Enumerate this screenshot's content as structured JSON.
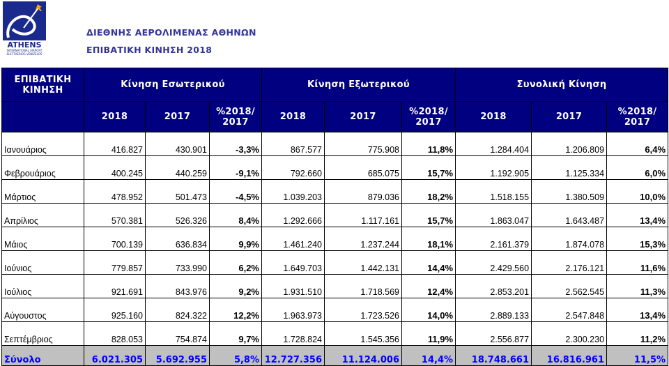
{
  "logo": {
    "name": "ATHENS",
    "sub1": "INTERNATIONAL AIRPORT",
    "sub2": "ELEFTHERIOS VENIZELOS"
  },
  "title1": "ΔΙΕΘΝΗΣ ΑΕΡΟΛΙΜΕΝΑΣ ΑΘΗΝΩΝ",
  "title2": "ΕΠΙΒΑΤΙΚΗ ΚΙΝΗΣΗ 2018",
  "header": {
    "corner": "ΕΠΙΒΑΤΙΚΗ ΚΙΝΗΣΗ",
    "groups": [
      "Κίνηση Εσωτερικού",
      "Κίνηση Εξωτερικού",
      "Συνολική Κίνηση"
    ],
    "sub": [
      "2018",
      "2017",
      "%2018/ 2017"
    ]
  },
  "rows": [
    [
      "Ιανουάριος",
      "416.827",
      "430.901",
      "-3,3%",
      "867.577",
      "775.908",
      "11,8%",
      "1.284.404",
      "1.206.809",
      "6,4%"
    ],
    [
      "Φεβρουάριος",
      "400.245",
      "440.259",
      "-9,1%",
      "792.660",
      "685.075",
      "15,7%",
      "1.192.905",
      "1.125.334",
      "6,0%"
    ],
    [
      "Μάρτιος",
      "478.952",
      "501.473",
      "-4,5%",
      "1.039.203",
      "879.036",
      "18,2%",
      "1.518.155",
      "1.380.509",
      "10,0%"
    ],
    [
      "Απρίλιος",
      "570.381",
      "526.326",
      "8,4%",
      "1.292.666",
      "1.117.161",
      "15,7%",
      "1.863.047",
      "1.643.487",
      "13,4%"
    ],
    [
      "Μάιος",
      "700.139",
      "636.834",
      "9,9%",
      "1.461.240",
      "1.237.244",
      "18,1%",
      "2.161.379",
      "1.874.078",
      "15,3%"
    ],
    [
      "Ιούνιος",
      "779.857",
      "733.990",
      "6,2%",
      "1.649.703",
      "1.442.131",
      "14,4%",
      "2.429.560",
      "2.176.121",
      "11,6%"
    ],
    [
      "Ιούλιος",
      "921.691",
      "843.976",
      "9,2%",
      "1.931.510",
      "1.718.569",
      "12,4%",
      "2.853.201",
      "2.562.545",
      "11,3%"
    ],
    [
      "Αύγουστος",
      "925.160",
      "824.322",
      "12,2%",
      "1.963.973",
      "1.723.526",
      "14,0%",
      "2.889.133",
      "2.547.848",
      "13,4%"
    ],
    [
      "Σεπτέμβριος",
      "828.053",
      "754.874",
      "9,7%",
      "1.728.824",
      "1.545.356",
      "11,9%",
      "2.556.877",
      "2.300.230",
      "11,2%"
    ]
  ],
  "total": [
    "Σύνολο",
    "6.021.305",
    "5.692.955",
    "5,8%",
    "12.727.356",
    "11.124.006",
    "14,4%",
    "18.748.661",
    "16.816.961",
    "11,5%"
  ]
}
